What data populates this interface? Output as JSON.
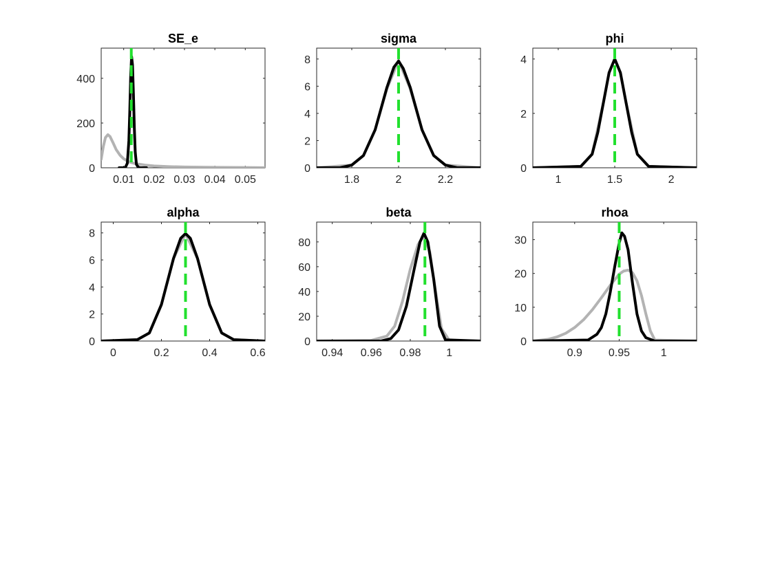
{
  "figure": {
    "legend_roles": {
      "prior": "grey curve",
      "posterior": "black curve",
      "mode": "green dashed vertical line"
    }
  },
  "colors": {
    "prior": "#b3b3b3",
    "posterior": "#000000",
    "mode": "#22e02e",
    "axis": "#262626",
    "background": "#ffffff"
  },
  "chart_data": [
    {
      "type": "line",
      "title": "SE_e",
      "xlim": [
        0.0026,
        0.0565
      ],
      "ylim": [
        0,
        535
      ],
      "xticks": [
        0.01,
        0.02,
        0.03,
        0.04,
        0.05
      ],
      "xtick_labels": [
        "0.01",
        "0.02",
        "0.03",
        "0.04",
        "0.05"
      ],
      "yticks": [
        0,
        200,
        400
      ],
      "ytick_labels": [
        "0",
        "200",
        "400"
      ],
      "mode": 0.0125,
      "prior": {
        "x": [
          0.0026,
          0.0033,
          0.004,
          0.0048,
          0.0055,
          0.0065,
          0.0075,
          0.0088,
          0.01,
          0.012,
          0.014,
          0.017,
          0.02,
          0.025,
          0.03,
          0.04,
          0.05,
          0.0565
        ],
        "y": [
          38,
          95,
          135,
          148,
          140,
          112,
          82,
          56,
          40,
          25,
          18,
          12,
          8,
          5,
          3.5,
          2,
          1,
          0.5
        ]
      },
      "posterior": {
        "x": [
          0.0085,
          0.0105,
          0.0112,
          0.0117,
          0.012,
          0.0123,
          0.0126,
          0.0129,
          0.0132,
          0.0135,
          0.0138,
          0.0142,
          0.0148,
          0.0155,
          0.0175
        ],
        "y": [
          0,
          0,
          20,
          120,
          250,
          410,
          497,
          460,
          330,
          180,
          70,
          15,
          2,
          0,
          0
        ]
      }
    },
    {
      "type": "line",
      "title": "sigma",
      "xlim": [
        1.65,
        2.35
      ],
      "ylim": [
        0,
        8.8
      ],
      "xticks": [
        1.8,
        2.0,
        2.2
      ],
      "xtick_labels": [
        "1.8",
        "2",
        "2.2"
      ],
      "yticks": [
        0,
        2,
        4,
        6,
        8
      ],
      "ytick_labels": [
        "0",
        "2",
        "4",
        "6",
        "8"
      ],
      "mode": 2.0,
      "prior": {
        "x": [
          1.65,
          1.8,
          1.85,
          1.9,
          1.95,
          2.0,
          2.05,
          2.1,
          2.15,
          2.2,
          2.35
        ],
        "y": [
          0,
          0.2,
          0.9,
          2.8,
          5.8,
          7.9,
          5.8,
          2.8,
          0.9,
          0.2,
          0
        ]
      },
      "posterior": {
        "x": [
          1.65,
          1.75,
          1.8,
          1.85,
          1.9,
          1.95,
          1.98,
          2.0,
          2.02,
          2.05,
          2.1,
          2.15,
          2.2,
          2.25,
          2.35
        ],
        "y": [
          0,
          0,
          0.2,
          0.9,
          2.8,
          5.9,
          7.4,
          7.85,
          7.3,
          5.9,
          2.8,
          0.9,
          0.2,
          0,
          0
        ]
      }
    },
    {
      "type": "line",
      "title": "phi",
      "xlim": [
        0.775,
        2.225
      ],
      "ylim": [
        0,
        4.4
      ],
      "xticks": [
        1.0,
        1.5,
        2.0
      ],
      "xtick_labels": [
        "1",
        "1.5",
        "2"
      ],
      "yticks": [
        0,
        2,
        4
      ],
      "ytick_labels": [
        "0",
        "2",
        "4"
      ],
      "mode": 1.5,
      "prior": {
        "x": [
          0.775,
          1.2,
          1.3,
          1.4,
          1.45,
          1.5,
          1.55,
          1.6,
          1.7,
          1.8,
          2.225
        ],
        "y": [
          0,
          0.05,
          0.5,
          2.4,
          3.5,
          4.0,
          3.5,
          2.4,
          0.5,
          0.05,
          0
        ]
      },
      "posterior": {
        "x": [
          0.775,
          1.2,
          1.3,
          1.35,
          1.4,
          1.45,
          1.5,
          1.55,
          1.6,
          1.65,
          1.7,
          1.8,
          2.225
        ],
        "y": [
          0,
          0.05,
          0.5,
          1.3,
          2.4,
          3.5,
          4.0,
          3.5,
          2.4,
          1.3,
          0.5,
          0.05,
          0
        ]
      }
    },
    {
      "type": "line",
      "title": "alpha",
      "xlim": [
        -0.05,
        0.63
      ],
      "ylim": [
        0,
        8.8
      ],
      "xticks": [
        0.0,
        0.2,
        0.4,
        0.6
      ],
      "xtick_labels": [
        "0",
        "0.2",
        "0.4",
        "0.6"
      ],
      "yticks": [
        0,
        2,
        4,
        6,
        8
      ],
      "ytick_labels": [
        "0",
        "2",
        "4",
        "6",
        "8"
      ],
      "mode": 0.3,
      "prior": {
        "x": [
          -0.05,
          0.1,
          0.15,
          0.2,
          0.25,
          0.3,
          0.35,
          0.4,
          0.45,
          0.5,
          0.63
        ],
        "y": [
          0,
          0.1,
          0.6,
          2.7,
          6.1,
          7.95,
          6.1,
          2.7,
          0.6,
          0.1,
          0
        ]
      },
      "posterior": {
        "x": [
          -0.05,
          0.1,
          0.15,
          0.2,
          0.25,
          0.28,
          0.3,
          0.32,
          0.35,
          0.4,
          0.45,
          0.5,
          0.63
        ],
        "y": [
          0,
          0.1,
          0.6,
          2.7,
          6.1,
          7.6,
          7.95,
          7.6,
          6.1,
          2.7,
          0.6,
          0.1,
          0
        ]
      }
    },
    {
      "type": "line",
      "title": "beta",
      "xlim": [
        0.932,
        1.016
      ],
      "ylim": [
        0,
        96
      ],
      "xticks": [
        0.94,
        0.96,
        0.98,
        1.0
      ],
      "xtick_labels": [
        "0.94",
        "0.96",
        "0.98",
        "1"
      ],
      "yticks": [
        0,
        20,
        40,
        60,
        80
      ],
      "ytick_labels": [
        "0",
        "20",
        "40",
        "60",
        "80"
      ],
      "mode": 0.9875,
      "prior": {
        "x": [
          0.932,
          0.96,
          0.968,
          0.972,
          0.976,
          0.98,
          0.984,
          0.987,
          0.99,
          0.993,
          0.996,
          1.0,
          1.016
        ],
        "y": [
          0,
          0.5,
          4,
          12,
          32,
          58,
          78,
          85,
          72,
          40,
          10,
          0.5,
          0
        ]
      },
      "posterior": {
        "x": [
          0.932,
          0.965,
          0.97,
          0.974,
          0.978,
          0.982,
          0.985,
          0.987,
          0.989,
          0.992,
          0.995,
          0.998,
          1.016
        ],
        "y": [
          0,
          0,
          2,
          9,
          28,
          58,
          80,
          87,
          80,
          50,
          12,
          1,
          0
        ]
      }
    },
    {
      "type": "line",
      "title": "rhoa",
      "xlim": [
        0.853,
        1.037
      ],
      "ylim": [
        0,
        35.2
      ],
      "xticks": [
        0.9,
        0.95,
        1.0
      ],
      "xtick_labels": [
        "0.9",
        "0.95",
        "1"
      ],
      "yticks": [
        0,
        10,
        20,
        30
      ],
      "ytick_labels": [
        "0",
        "10",
        "20",
        "30"
      ],
      "mode": 0.95,
      "prior": {
        "x": [
          0.853,
          0.87,
          0.88,
          0.89,
          0.9,
          0.91,
          0.92,
          0.93,
          0.94,
          0.95,
          0.955,
          0.96,
          0.965,
          0.97,
          0.975,
          0.98,
          0.985,
          0.99,
          1.037
        ],
        "y": [
          0,
          0.5,
          1.2,
          2.3,
          4,
          6.3,
          9.3,
          12.8,
          16.5,
          19.8,
          20.7,
          21,
          20.2,
          17.8,
          13.5,
          8,
          3,
          0.3,
          0
        ]
      },
      "posterior": {
        "x": [
          0.853,
          0.915,
          0.925,
          0.93,
          0.935,
          0.94,
          0.945,
          0.95,
          0.953,
          0.956,
          0.96,
          0.965,
          0.97,
          0.975,
          0.98,
          0.99,
          1.037
        ],
        "y": [
          0,
          0.3,
          2,
          4,
          8,
          14.5,
          22,
          29,
          32,
          31,
          27,
          17,
          8,
          3,
          1,
          0,
          0
        ]
      }
    }
  ]
}
